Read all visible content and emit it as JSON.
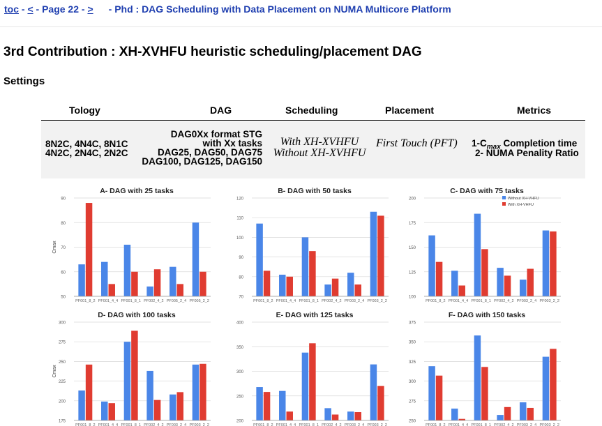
{
  "nav": {
    "toc": "toc",
    "dash1": " - ",
    "prev": "<",
    "page": " - Page 22 - ",
    "next": ">",
    "title": "- Phd : DAG Scheduling with Data Placement on NUMA Multicore Platform"
  },
  "heading": "3rd Contribution : XH-XVHFU heuristic scheduling/placement DAG",
  "settings_label": "Settings",
  "table": {
    "headers": [
      "Tology",
      "DAG",
      "Scheduling",
      "Placement",
      "Metrics"
    ],
    "topology": [
      "8N2C, 4N4C, 8N1C",
      "4N2C, 2N4C, 2N2C"
    ],
    "dag": [
      "DAG0Xx format STG",
      "with Xx tasks",
      "DAG25, DAG50, DAG75",
      "DAG100, DAG125, DAG150"
    ],
    "scheduling": [
      "With XH-XVHFU",
      "Without XH-XVHFU"
    ],
    "placement": "First Touch (PFT)",
    "metrics": [
      "Completion time",
      "2- NUMA Penality Ratio"
    ],
    "metrics_prefix": "1-C",
    "metrics_sub": "max"
  },
  "colors": {
    "without": "#4a86e8",
    "with": "#e03c31"
  },
  "chart_data": [
    {
      "type": "bar",
      "title": "A- DAG with 25 tasks",
      "ylabel": "Cmax",
      "ylim": [
        50,
        90
      ],
      "yticks": [
        50,
        60,
        70,
        80,
        90
      ],
      "categories": [
        "PF001_8_2",
        "PF001_4_4",
        "PF001_8_1",
        "PF002_4_2",
        "PF005_2_4",
        "PF005_2_2"
      ],
      "series": [
        {
          "name": "Without XH-VHFU",
          "values": [
            63,
            64,
            71,
            54,
            62,
            80
          ]
        },
        {
          "name": "With XH-VHFU",
          "values": [
            88,
            55,
            60,
            61,
            55,
            60
          ]
        }
      ]
    },
    {
      "type": "bar",
      "title": "B- DAG with 50 tasks",
      "ylabel": "",
      "ylim": [
        70,
        120
      ],
      "yticks": [
        70,
        80,
        90,
        100,
        110,
        120
      ],
      "categories": [
        "PF001_8_2",
        "PF001_4_4",
        "PF001_8_1",
        "PF002_4_2",
        "PF003_2_4",
        "PF003_2_2"
      ],
      "series": [
        {
          "name": "Without XH-VHFU",
          "values": [
            107,
            81,
            100,
            76,
            82,
            113
          ]
        },
        {
          "name": "With XH-VHFU",
          "values": [
            83,
            80,
            93,
            79,
            76,
            111
          ]
        }
      ]
    },
    {
      "type": "bar",
      "title": "C- DAG with 75 tasks",
      "ylabel": "",
      "ylim": [
        100,
        200
      ],
      "yticks": [
        100,
        125,
        150,
        175,
        200
      ],
      "categories": [
        "PF001_8_2",
        "PF001_4_4",
        "PF001_8_1",
        "PF002_4_2",
        "PF003_2_4",
        "PF003_2_2"
      ],
      "series": [
        {
          "name": "Without XH-VHFU",
          "values": [
            162,
            126,
            184,
            129,
            117,
            167
          ]
        },
        {
          "name": "With XH-VHFU",
          "values": [
            135,
            111,
            148,
            121,
            128,
            166
          ]
        }
      ],
      "legend": "top-right"
    },
    {
      "type": "bar",
      "title": "D- DAG with 100 tasks",
      "ylabel": "Cmax",
      "ylim": [
        175,
        300
      ],
      "yticks": [
        175,
        200,
        225,
        250,
        275,
        300
      ],
      "categories": [
        "PF001_8_2",
        "PF001_4_4",
        "PF001_8_1",
        "PF002_4_2",
        "PF003_2_4",
        "PF003_2_2"
      ],
      "series": [
        {
          "name": "Without XH-VHFU",
          "values": [
            213,
            199,
            275,
            238,
            208,
            246
          ]
        },
        {
          "name": "With XH-VHFU",
          "values": [
            246,
            197,
            289,
            201,
            211,
            247
          ]
        }
      ]
    },
    {
      "type": "bar",
      "title": "E- DAG with 125 tasks",
      "ylabel": "",
      "ylim": [
        200,
        400
      ],
      "yticks": [
        200,
        250,
        300,
        350,
        400
      ],
      "categories": [
        "PF001_8_2",
        "PF001_4_4",
        "PF001_8_1",
        "PF002_4_2",
        "PF003_2_4",
        "PF003_2_2"
      ],
      "series": [
        {
          "name": "Without XH-VHFU",
          "values": [
            268,
            260,
            338,
            225,
            218,
            314
          ]
        },
        {
          "name": "With XH-VHFU",
          "values": [
            258,
            218,
            357,
            212,
            217,
            270
          ]
        }
      ]
    },
    {
      "type": "bar",
      "title": "F- DAG with 150 tasks",
      "ylabel": "",
      "ylim": [
        250,
        375
      ],
      "yticks": [
        250,
        275,
        300,
        325,
        350,
        375
      ],
      "categories": [
        "PF001_8_2",
        "PF001_4_4",
        "PF001_8_1",
        "PF002_4_2",
        "PF003_2_4",
        "PF003_2_2"
      ],
      "series": [
        {
          "name": "Without XH-VHFU",
          "values": [
            319,
            265,
            358,
            257,
            273,
            331
          ]
        },
        {
          "name": "With XH-VHFU",
          "values": [
            307,
            252,
            318,
            267,
            266,
            341
          ]
        }
      ]
    }
  ]
}
